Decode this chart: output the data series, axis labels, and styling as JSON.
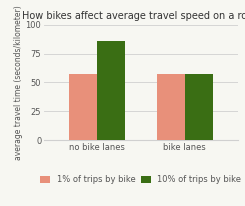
{
  "title": "How bikes affect average travel speed on a road",
  "ylabel": "average travel time (seconds/kilometer)",
  "categories": [
    "no bike lanes",
    "bike lanes"
  ],
  "series": [
    {
      "label": "1% of trips by bike",
      "values": [
        57,
        57
      ],
      "color": "#e8907a"
    },
    {
      "label": "10% of trips by bike",
      "values": [
        86,
        57
      ],
      "color": "#3a6e14"
    }
  ],
  "ylim": [
    0,
    100
  ],
  "yticks": [
    0,
    25,
    50,
    75,
    100
  ],
  "bar_width": 0.32,
  "background_color": "#f7f7f2",
  "grid_color": "#d0d0d0",
  "title_fontsize": 7.0,
  "label_fontsize": 5.5,
  "tick_fontsize": 6.0,
  "legend_fontsize": 6.0
}
